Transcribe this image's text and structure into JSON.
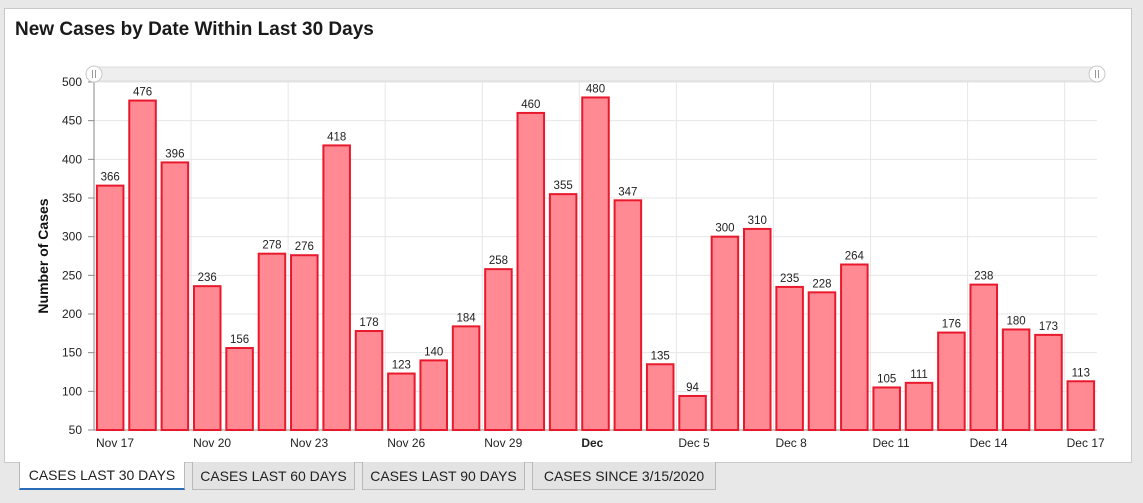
{
  "chart_data": {
    "type": "bar",
    "title": "New Cases by Date Within Last 30 Days",
    "xlabel": "",
    "ylabel": "Number of Cases",
    "ylim": [
      50,
      500
    ],
    "yticks": [
      50,
      100,
      150,
      200,
      250,
      300,
      350,
      400,
      450,
      500
    ],
    "categories": [
      "Nov 17",
      "Nov 18",
      "Nov 19",
      "Nov 20",
      "Nov 21",
      "Nov 22",
      "Nov 23",
      "Nov 24",
      "Nov 25",
      "Nov 26",
      "Nov 27",
      "Nov 28",
      "Nov 29",
      "Nov 30",
      "Dec 1",
      "Dec 2",
      "Dec 3",
      "Dec 4",
      "Dec 5",
      "Dec 6",
      "Dec 7",
      "Dec 8",
      "Dec 9",
      "Dec 10",
      "Dec 11",
      "Dec 12",
      "Dec 13",
      "Dec 14",
      "Dec 15",
      "Dec 16",
      "Dec 17"
    ],
    "values": [
      366,
      476,
      396,
      236,
      156,
      278,
      276,
      418,
      178,
      123,
      140,
      184,
      258,
      460,
      355,
      480,
      347,
      135,
      94,
      300,
      310,
      235,
      228,
      264,
      105,
      111,
      176,
      238,
      180,
      173,
      113
    ],
    "xtick_labels": [
      {
        "index": 0,
        "label": "Nov 17"
      },
      {
        "index": 3,
        "label": "Nov 20"
      },
      {
        "index": 6,
        "label": "Nov 23"
      },
      {
        "index": 9,
        "label": "Nov 26"
      },
      {
        "index": 12,
        "label": "Nov 29"
      },
      {
        "index": 15,
        "label": "Dec",
        "bold": true
      },
      {
        "index": 18,
        "label": "Dec 5"
      },
      {
        "index": 21,
        "label": "Dec 8"
      },
      {
        "index": 24,
        "label": "Dec 11"
      },
      {
        "index": 27,
        "label": "Dec 14"
      },
      {
        "index": 30,
        "label": "Dec 17"
      }
    ],
    "colors": {
      "bar_fill": "#ff8a94",
      "bar_stroke": "#e8192c",
      "grid": "#e6e6e6"
    }
  },
  "tabs": [
    {
      "label": "CASES LAST 30 DAYS",
      "active": true
    },
    {
      "label": "CASES LAST 60 DAYS",
      "active": false
    },
    {
      "label": "CASES LAST 90 DAYS",
      "active": false
    },
    {
      "label": "CASES SINCE 3/15/2020",
      "active": false
    }
  ]
}
